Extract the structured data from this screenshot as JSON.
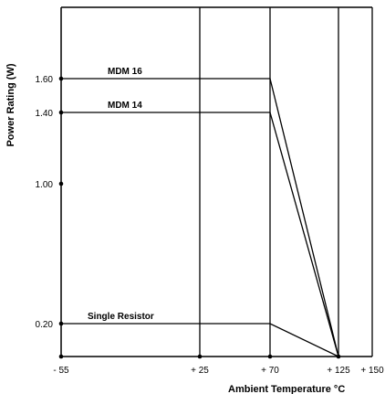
{
  "chart_data": {
    "type": "line",
    "title": "",
    "xlabel": "Ambient Temperature °C",
    "ylabel": "Power Rating (W)",
    "x_ticks": [
      -55,
      25,
      70,
      125,
      150
    ],
    "x_tick_labels": [
      "- 55",
      "+ 25",
      "+ 70",
      "+ 125",
      "+ 150"
    ],
    "y_ticks": [
      0.2,
      1.0,
      1.4,
      1.6
    ],
    "y_tick_labels": [
      "0.20",
      "1.00",
      "1.40",
      "1.60"
    ],
    "xlim": [
      -55,
      150
    ],
    "ylim": [
      0,
      2.0
    ],
    "grid": "vertical lines at x ticks",
    "series": [
      {
        "name": "MDM 16",
        "x": [
          -55,
          70,
          125
        ],
        "y": [
          1.6,
          1.6,
          0
        ]
      },
      {
        "name": "MDM 14",
        "x": [
          -55,
          70,
          125
        ],
        "y": [
          1.4,
          1.4,
          0
        ]
      },
      {
        "name": "Single Resistor",
        "x": [
          -55,
          70,
          125
        ],
        "y": [
          0.2,
          0.2,
          0
        ]
      }
    ],
    "line_color": "#000000"
  }
}
